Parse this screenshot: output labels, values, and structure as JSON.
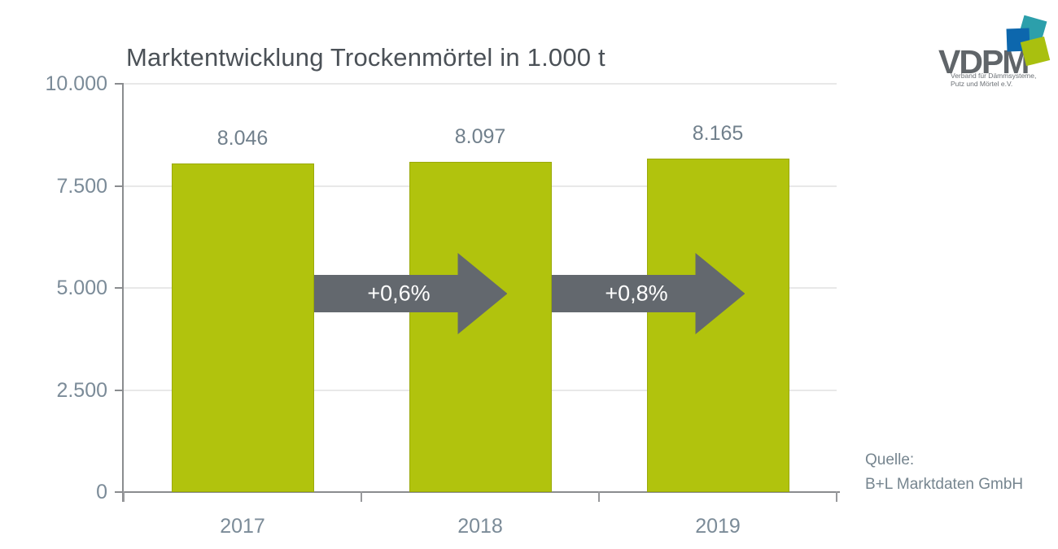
{
  "title": "Marktentwicklung Trockenmörtel in 1.000 t",
  "logo": {
    "name": "VDPM",
    "subtitle_line1": "Verband für Dämmsysteme,",
    "subtitle_line2": "Putz und Mörtel e.V.",
    "square_colors": {
      "teal": "#2c9fab",
      "blue": "#0d67ad",
      "lime": "#a9c00f"
    }
  },
  "source": {
    "label": "Quelle:",
    "value": "B+L Marktdaten GmbH"
  },
  "chart_data": {
    "type": "bar",
    "title": "Marktentwicklung Trockenmörtel in 1.000 t",
    "categories": [
      "2017",
      "2018",
      "2019"
    ],
    "values": [
      8046,
      8097,
      8165
    ],
    "value_labels": [
      "8.046",
      "8.097",
      "8.165"
    ],
    "growth_arrows": [
      {
        "label": "+0,6%",
        "from": "2017",
        "to": "2018"
      },
      {
        "label": "+0,8%",
        "from": "2018",
        "to": "2019"
      }
    ],
    "xlabel": "",
    "ylabel": "",
    "ylim": [
      0,
      10000
    ],
    "yticks": [
      0,
      2500,
      5000,
      7500,
      10000
    ],
    "ytick_labels": [
      "0",
      "2.500",
      "5.000",
      "7.500",
      "10.000"
    ],
    "grid": true,
    "legend": false,
    "bar_color": "#b1c30d",
    "arrow_color": "#63686e",
    "label_color": "#7b8b98"
  }
}
